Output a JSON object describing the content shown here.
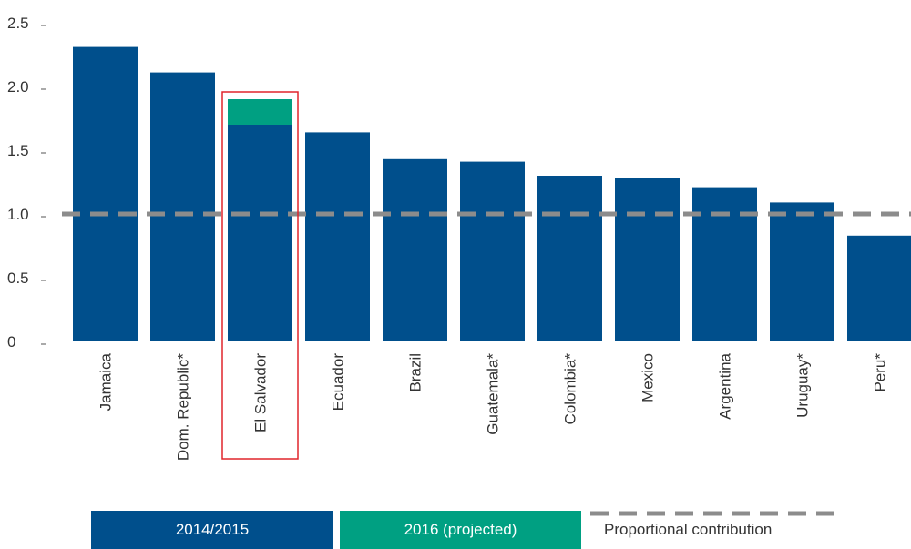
{
  "chart_data": {
    "type": "bar",
    "stacked": true,
    "categories": [
      "Jamaica",
      "Dom. Republic*",
      "El Salvador",
      "Ecuador",
      "Brazil",
      "Guatemala*",
      "Colombia*",
      "Mexico",
      "Argentina",
      "Uruguay*",
      "Peru*"
    ],
    "series": [
      {
        "name": "2014/2015",
        "color": "#004f8c",
        "values": [
          2.31,
          2.11,
          1.7,
          1.64,
          1.43,
          1.41,
          1.3,
          1.28,
          1.21,
          1.09,
          0.83
        ]
      },
      {
        "name": "2016 (projected)",
        "color": "#00a082",
        "values": [
          0,
          0,
          0.2,
          0,
          0,
          0,
          0,
          0,
          0,
          0,
          0
        ]
      }
    ],
    "reference_line": {
      "name": "Proportional contribution",
      "value": 1.0,
      "color": "#8c8c8c",
      "style": "dashed"
    },
    "highlight": {
      "category": "El Salvador",
      "color": "#e0252b"
    },
    "y_ticks": [
      "0",
      "0.5",
      "1.0",
      "1.5",
      "2.0",
      "2.5"
    ],
    "ylim": [
      0,
      2.5
    ],
    "title": "",
    "xlabel": "",
    "ylabel": ""
  },
  "legend": {
    "items": [
      {
        "label": "2014/2015",
        "color": "#004f8c"
      },
      {
        "label": "2016 (projected)",
        "color": "#00a082"
      },
      {
        "label": "Proportional contribution",
        "color": "#8c8c8c"
      }
    ]
  }
}
